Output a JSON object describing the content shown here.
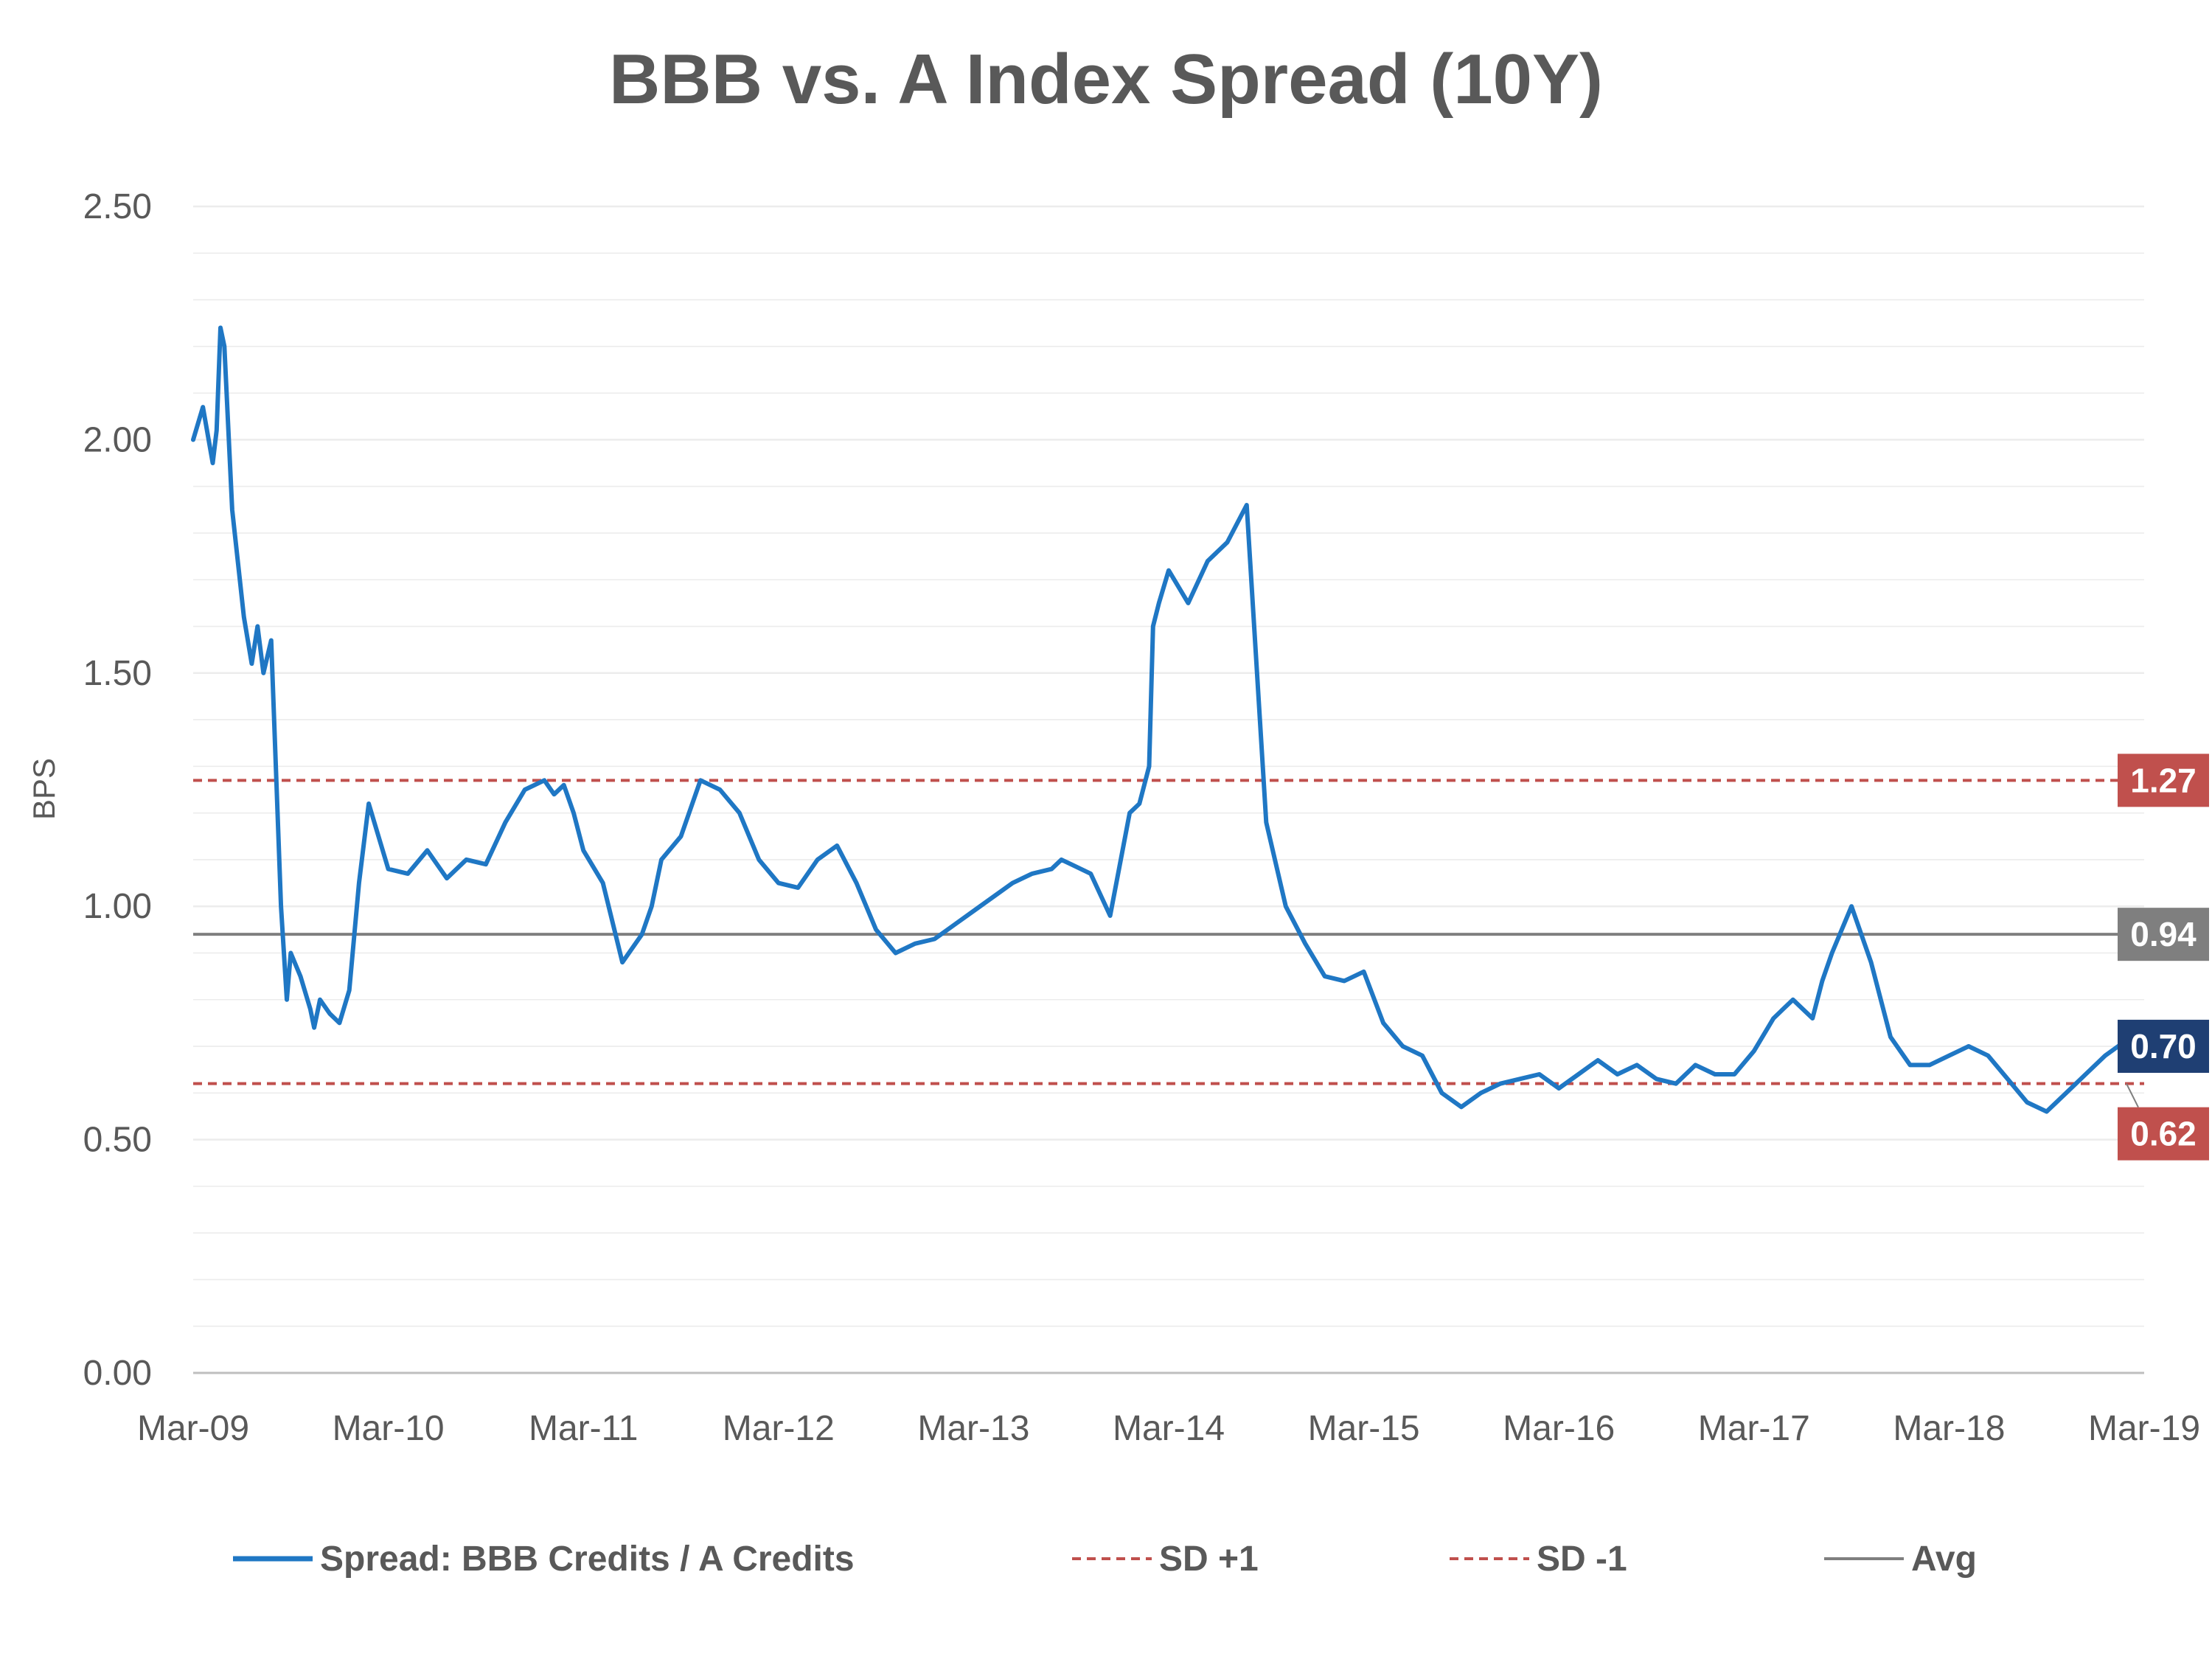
{
  "chart_data": {
    "type": "line",
    "title": "BBB vs. A Index Spread (10Y)",
    "ylabel": "BPS",
    "xlabel": "",
    "ylim": [
      0,
      2.5
    ],
    "yticks": [
      "0.00",
      "0.50",
      "1.00",
      "1.50",
      "2.00",
      "2.50"
    ],
    "xticks": [
      "Mar-09",
      "Mar-10",
      "Mar-11",
      "Mar-12",
      "Mar-13",
      "Mar-14",
      "Mar-15",
      "Mar-16",
      "Mar-17",
      "Mar-18",
      "Mar-19"
    ],
    "grid": true,
    "legend_position": "bottom",
    "series": [
      {
        "name": "Spread:  BBB Credits / A Credits",
        "color": "#1f77c4",
        "style": "solid",
        "x": [
          0,
          0.05,
          0.1,
          0.12,
          0.14,
          0.16,
          0.2,
          0.26,
          0.3,
          0.33,
          0.36,
          0.4,
          0.45,
          0.48,
          0.5,
          0.55,
          0.6,
          0.62,
          0.65,
          0.7,
          0.75,
          0.8,
          0.85,
          0.9,
          1.0,
          1.1,
          1.2,
          1.3,
          1.4,
          1.5,
          1.6,
          1.7,
          1.8,
          1.85,
          1.9,
          1.95,
          2.0,
          2.1,
          2.2,
          2.3,
          2.35,
          2.4,
          2.5,
          2.6,
          2.7,
          2.8,
          2.9,
          3.0,
          3.1,
          3.2,
          3.3,
          3.4,
          3.5,
          3.6,
          3.7,
          3.8,
          3.9,
          4.0,
          4.1,
          4.2,
          4.3,
          4.4,
          4.45,
          4.5,
          4.6,
          4.7,
          4.8,
          4.85,
          4.9,
          4.92,
          4.95,
          5.0,
          5.1,
          5.2,
          5.3,
          5.4,
          5.5,
          5.6,
          5.7,
          5.8,
          5.9,
          6.0,
          6.1,
          6.2,
          6.3,
          6.4,
          6.5,
          6.6,
          6.7,
          6.8,
          6.9,
          7.0,
          7.1,
          7.2,
          7.3,
          7.4,
          7.5,
          7.6,
          7.7,
          7.8,
          7.9,
          8.0,
          8.1,
          8.15,
          8.2,
          8.25,
          8.3,
          8.35,
          8.4,
          8.5,
          8.6,
          8.7,
          8.8,
          8.9,
          9.0,
          9.1,
          9.2,
          9.3,
          9.4,
          9.5,
          9.6,
          9.7,
          9.8,
          9.9
        ],
        "y": [
          2.0,
          2.07,
          1.95,
          2.02,
          2.24,
          2.2,
          1.85,
          1.62,
          1.52,
          1.6,
          1.5,
          1.57,
          1.0,
          0.8,
          0.9,
          0.85,
          0.78,
          0.74,
          0.8,
          0.77,
          0.75,
          0.82,
          1.05,
          1.22,
          1.08,
          1.07,
          1.12,
          1.06,
          1.1,
          1.09,
          1.18,
          1.25,
          1.27,
          1.24,
          1.26,
          1.2,
          1.12,
          1.05,
          0.88,
          0.94,
          1.0,
          1.1,
          1.15,
          1.27,
          1.25,
          1.2,
          1.1,
          1.05,
          1.04,
          1.1,
          1.13,
          1.05,
          0.95,
          0.9,
          0.92,
          0.93,
          0.96,
          0.99,
          1.02,
          1.05,
          1.07,
          1.08,
          1.1,
          1.09,
          1.07,
          0.98,
          1.2,
          1.22,
          1.3,
          1.6,
          1.65,
          1.72,
          1.65,
          1.74,
          1.78,
          1.86,
          1.18,
          1.0,
          0.92,
          0.85,
          0.84,
          0.86,
          0.75,
          0.7,
          0.68,
          0.6,
          0.57,
          0.6,
          0.62,
          0.63,
          0.64,
          0.61,
          0.64,
          0.67,
          0.64,
          0.66,
          0.63,
          0.62,
          0.66,
          0.64,
          0.64,
          0.69,
          0.76,
          0.78,
          0.8,
          0.78,
          0.76,
          0.84,
          0.9,
          1.0,
          0.88,
          0.72,
          0.66,
          0.66,
          0.68,
          0.7,
          0.68,
          0.63,
          0.58,
          0.56,
          0.6,
          0.64,
          0.68,
          0.71
        ]
      },
      {
        "name": "SD +1",
        "color": "#c0504d",
        "style": "dashed",
        "value": 1.27
      },
      {
        "name": "SD -1",
        "color": "#c0504d",
        "style": "dashed",
        "value": 0.62
      },
      {
        "name": "Avg",
        "color": "#7f7f7f",
        "style": "solid",
        "value": 0.94
      }
    ],
    "annotations": [
      {
        "label": "1.27",
        "value": 1.27,
        "color": "#c0504d"
      },
      {
        "label": "0.94",
        "value": 0.94,
        "color": "#7f7f7f"
      },
      {
        "label": "0.70",
        "value": 0.7,
        "color": "#1f3f73"
      },
      {
        "label": "0.62",
        "value": 0.62,
        "color": "#c0504d"
      }
    ]
  }
}
